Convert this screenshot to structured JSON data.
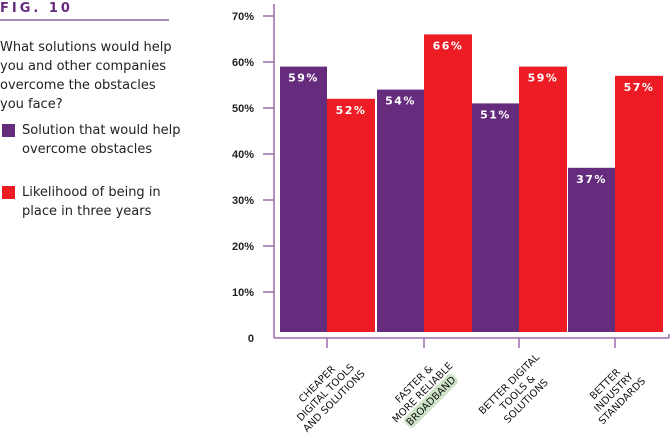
{
  "figure_label": "FIG. 10",
  "question": "What solutions would help you and other companies overcome the obstacles you face?",
  "colors": {
    "purple": "#652b7c",
    "red": "#ed1c24",
    "axis": "#9b6aab",
    "highlight": "#cfe3c8"
  },
  "chart_data": {
    "type": "bar",
    "categories": [
      [
        "CHEAPER",
        "DIGITAL TOOLS",
        "AND SOLUTIONS"
      ],
      [
        "FASTER &",
        "MORE RELIABLE",
        "BROADBAND"
      ],
      [
        "BETTER DIGITAL",
        "TOOLS &",
        "SOLUTIONS"
      ],
      [
        "BETTER",
        "INDUSTRY",
        "STANDARDS"
      ]
    ],
    "highlighted_word": "BROADBAND",
    "series": [
      {
        "name": "Solution that would help overcome obstacles",
        "values": [
          59,
          54,
          51,
          37
        ],
        "labels": [
          "59%",
          "54%",
          "51%",
          "37%"
        ],
        "color": "#652b7c"
      },
      {
        "name": "Likelihood of being in place in three years",
        "values": [
          52,
          66,
          59,
          57
        ],
        "labels": [
          "52%",
          "66%",
          "59%",
          "57%"
        ],
        "color": "#ed1c24"
      }
    ],
    "yticks": [
      "0",
      "10%",
      "20%",
      "30%",
      "40%",
      "50%",
      "60%",
      "70%"
    ],
    "ylim": [
      0,
      70
    ],
    "grid": false,
    "legend": "left"
  }
}
